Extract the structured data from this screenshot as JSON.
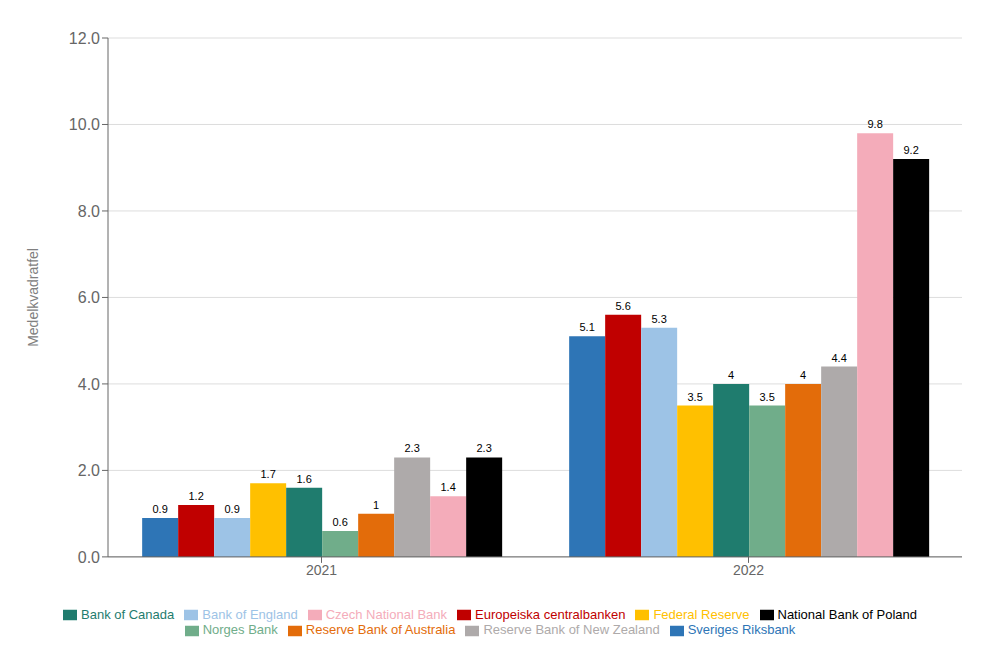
{
  "chart_data": {
    "type": "bar",
    "categories": [
      "2021",
      "2022"
    ],
    "series": [
      {
        "name": "Sveriges Riksbank",
        "color": "#2E75B6",
        "values": [
          0.9,
          5.1
        ]
      },
      {
        "name": "Europeiska centralbanken",
        "color": "#C00000",
        "values": [
          1.2,
          5.6
        ]
      },
      {
        "name": "Bank of England",
        "color": "#9DC3E6",
        "values": [
          0.9,
          5.3
        ]
      },
      {
        "name": "Federal Reserve",
        "color": "#FFC000",
        "values": [
          1.7,
          3.5
        ]
      },
      {
        "name": "Bank of Canada",
        "color": "#1F7C6E",
        "values": [
          1.6,
          4.0
        ]
      },
      {
        "name": "Norges Bank",
        "color": "#70AD8A",
        "values": [
          0.6,
          3.5
        ]
      },
      {
        "name": "Reserve Bank of Australia",
        "color": "#E36C0A",
        "values": [
          1.0,
          4.0
        ]
      },
      {
        "name": "Reserve Bank of New Zealand",
        "color": "#AEAAAA",
        "values": [
          2.3,
          4.4
        ]
      },
      {
        "name": "Czech National Bank",
        "color": "#F4ACBA",
        "values": [
          1.4,
          9.8
        ]
      },
      {
        "name": "National Bank of Poland",
        "color": "#000000",
        "values": [
          2.3,
          9.2
        ]
      }
    ],
    "ylabel": "Medelkvadratfel",
    "ylim": [
      0,
      12.0
    ],
    "yticks": [
      {
        "value": 0,
        "label": "0.0"
      },
      {
        "value": 2,
        "label": "2.0"
      },
      {
        "value": 4,
        "label": "4.0"
      },
      {
        "value": 6,
        "label": "6.0"
      },
      {
        "value": 8,
        "label": "8.0"
      },
      {
        "value": 10,
        "label": "10.0"
      },
      {
        "value": 12,
        "label": "12.0"
      }
    ],
    "grid": true,
    "legend": "bottom",
    "data_labels": true
  }
}
